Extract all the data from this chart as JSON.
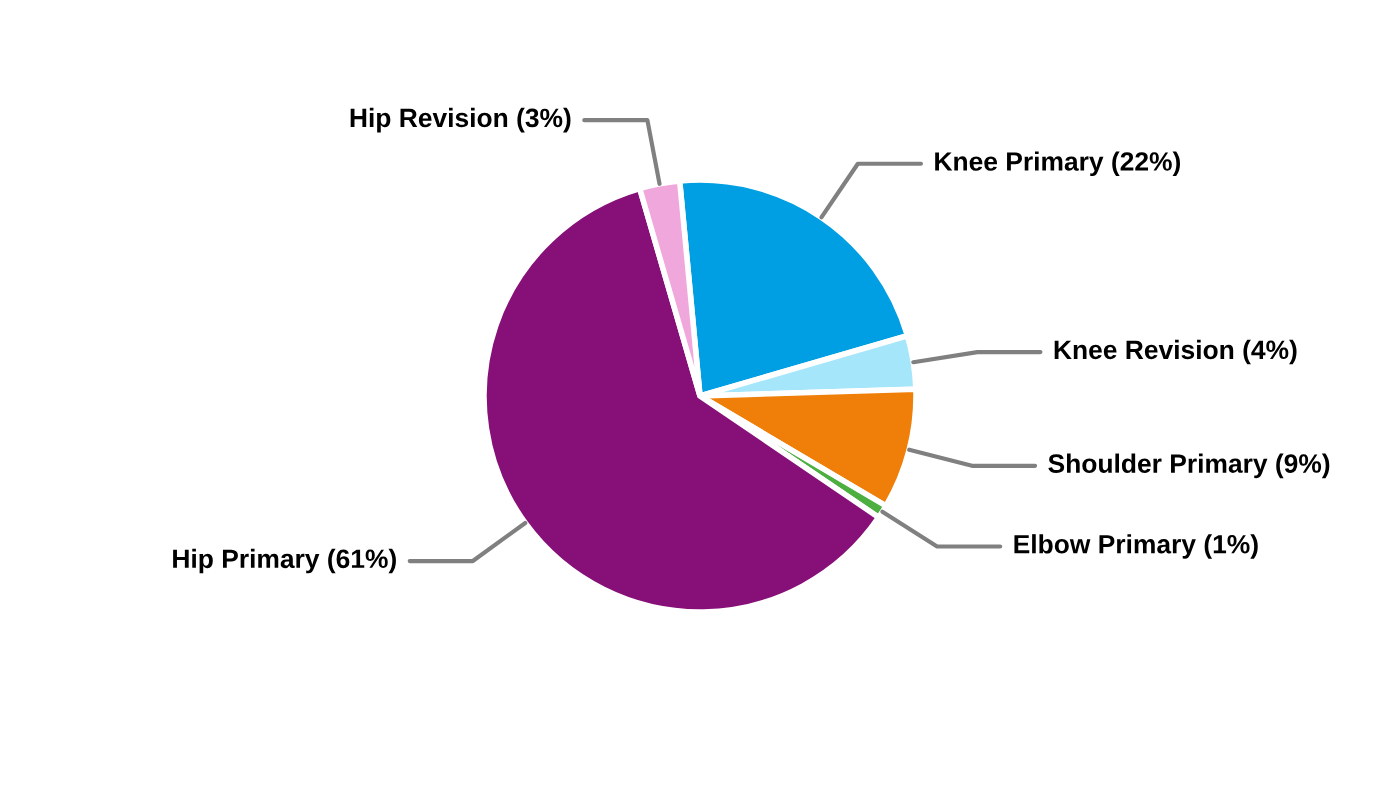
{
  "chart_data": {
    "type": "pie",
    "categories": [
      "Knee Primary (22%)",
      "Knee Revision (4%)",
      "Shoulder Primary (9%)",
      "Elbow Primary (1%)",
      "Hip Primary (61%)",
      "Hip Revision (3%)"
    ],
    "values": [
      22,
      4,
      9,
      1,
      61,
      3
    ],
    "colors": [
      "#009fe3",
      "#a6e6fb",
      "#f07f09",
      "#4caf3f",
      "#871078",
      "#f0a8dc"
    ]
  }
}
